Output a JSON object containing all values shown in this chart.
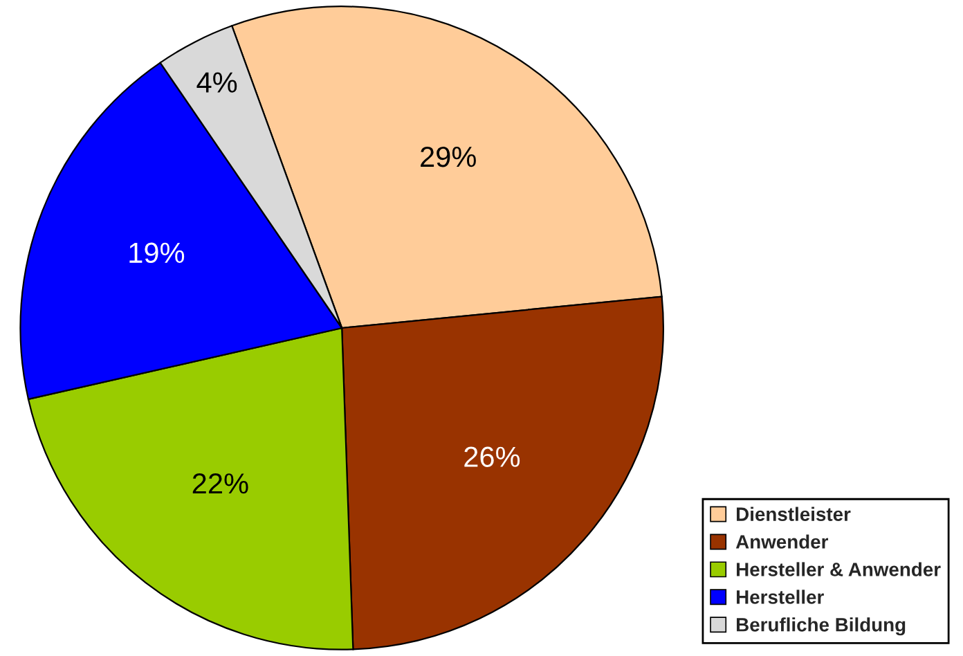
{
  "chart_data": {
    "type": "pie",
    "categories": [
      "Dienstleister",
      "Anwender",
      "Hersteller & Anwender",
      "Hersteller",
      "Berufliche Bildung"
    ],
    "values": [
      29,
      26,
      22,
      19,
      4
    ],
    "colors": [
      "#ffcc99",
      "#993300",
      "#99cc00",
      "#0000ff",
      "#d9d9d9"
    ],
    "value_labels": [
      "29%",
      "26%",
      "22%",
      "19%",
      "4%"
    ],
    "legend": "bottom right"
  }
}
